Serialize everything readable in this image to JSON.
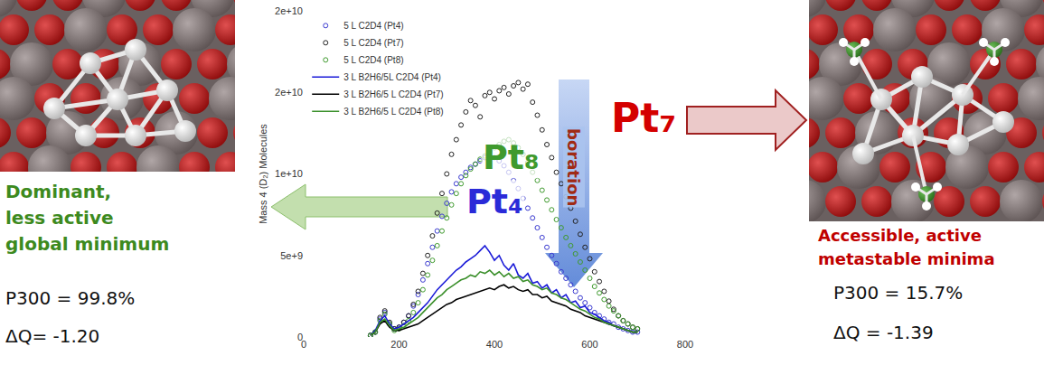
{
  "chart_data": {
    "type": "scatter",
    "x": [
      140,
      150,
      160,
      170,
      180,
      190,
      200,
      210,
      220,
      230,
      240,
      250,
      260,
      270,
      280,
      290,
      300,
      310,
      320,
      330,
      340,
      350,
      360,
      370,
      380,
      390,
      400,
      410,
      420,
      430,
      440,
      450,
      460,
      470,
      480,
      490,
      500,
      510,
      520,
      530,
      540,
      550,
      560,
      570,
      580,
      590,
      600,
      610,
      620,
      630,
      640,
      650,
      660,
      670,
      680,
      690,
      700
    ],
    "xlim": [
      0,
      800
    ],
    "xticks": [
      0,
      200,
      400,
      600,
      800
    ],
    "ylim": [
      0,
      20000000000.0
    ],
    "yticks": [
      0,
      {
        "value": 5000000000.0,
        "label": "5e+9"
      },
      {
        "value": 10000000000.0,
        "label": "1e+10"
      },
      {
        "value": 15000000000.0,
        "label": "2e+10"
      },
      {
        "value": 20000000000.0,
        "label": "2e+10"
      }
    ],
    "y_label": "Mass 4 (D₂) Molecules",
    "grid": false,
    "legend": "upper left",
    "series": [
      {
        "name": "5 L C2D4 (Pt4)",
        "type": "scatter",
        "marker": "open circle",
        "color": "#3a3ad0",
        "values": [
          100000000.0,
          300000000.0,
          1100000000.0,
          1500000000.0,
          800000000.0,
          500000000.0,
          600000000.0,
          900000000.0,
          1300000000.0,
          1900000000.0,
          2600000000.0,
          3500000000.0,
          4500000000.0,
          5500000000.0,
          6500000000.0,
          7400000000.0,
          8200000000.0,
          8900000000.0,
          9400000000.0,
          9800000000.0,
          10100000000.0,
          10400000000.0,
          10600000000.0,
          10800000000.0,
          11000000000.0,
          11100000000.0,
          11000000000.0,
          10800000000.0,
          10500000000.0,
          10100000000.0,
          9600000000.0,
          9100000000.0,
          8500000000.0,
          7900000000.0,
          7300000000.0,
          6700000000.0,
          6100000000.0,
          5500000000.0,
          5000000000.0,
          4500000000.0,
          4000000000.0,
          3600000000.0,
          3200000000.0,
          2800000000.0,
          2400000000.0,
          2100000000.0,
          1800000000.0,
          1500000000.0,
          1300000000.0,
          1100000000.0,
          900000000.0,
          800000000.0,
          600000000.0,
          500000000.0,
          400000000.0,
          300000000.0,
          300000000.0
        ]
      },
      {
        "name": "5 L C2D4 (Pt7)",
        "type": "scatter",
        "marker": "open circle",
        "color": "#222222",
        "values": [
          100000000.0,
          300000000.0,
          1200000000.0,
          1600000000.0,
          900000000.0,
          500000000.0,
          600000000.0,
          900000000.0,
          1300000000.0,
          2000000000.0,
          2800000000.0,
          3900000000.0,
          5000000000.0,
          6200000000.0,
          7600000000.0,
          8800000000.0,
          10000000000.0,
          11200000000.0,
          12100000000.0,
          13000000000.0,
          13800000000.0,
          14500000000.0,
          14200000000.0,
          13500000000.0,
          14800000000.0,
          15000000000.0,
          14600000000.0,
          15100000000.0,
          15300000000.0,
          14900000000.0,
          15400000000.0,
          15600000000.0,
          15200000000.0,
          15500000000.0,
          14400000000.0,
          13600000000.0,
          12700000000.0,
          11800000000.0,
          11000000000.0,
          10100000000.0,
          9400000000.0,
          8600000000.0,
          7900000000.0,
          7100000000.0,
          6300000000.0,
          5500000000.0,
          4800000000.0,
          4000000000.0,
          3400000000.0,
          2800000000.0,
          2200000000.0,
          1700000000.0,
          1300000000.0,
          1000000000.0,
          800000000.0,
          600000000.0,
          500000000.0
        ]
      },
      {
        "name": "5 L C2D4 (Pt8)",
        "type": "scatter",
        "marker": "open circle",
        "color": "#3f9a2e",
        "values": [
          100000000.0,
          300000000.0,
          1000000000.0,
          1400000000.0,
          800000000.0,
          400000000.0,
          500000000.0,
          700000000.0,
          1000000000.0,
          1500000000.0,
          2100000000.0,
          2900000000.0,
          3800000000.0,
          4700000000.0,
          5600000000.0,
          6500000000.0,
          7300000000.0,
          8100000000.0,
          8800000000.0,
          9400000000.0,
          9900000000.0,
          10300000000.0,
          10600000000.0,
          10900000000.0,
          11100000000.0,
          11400000000.0,
          11600000000.0,
          11800000000.0,
          12000000000.0,
          12100000000.0,
          11900000000.0,
          11600000000.0,
          11200000000.0,
          10700000000.0,
          10100000000.0,
          9600000000.0,
          9000000000.0,
          8400000000.0,
          7800000000.0,
          7200000000.0,
          6700000000.0,
          6100000000.0,
          5600000000.0,
          5100000000.0,
          4600000000.0,
          4100000000.0,
          3600000000.0,
          3100000000.0,
          2700000000.0,
          2300000000.0,
          1900000000.0,
          1600000000.0,
          1300000000.0,
          1000000000.0,
          800000000.0,
          600000000.0,
          500000000.0
        ]
      },
      {
        "name": "3 L B2H6/5L C2D4 (Pt4)",
        "type": "line",
        "line_style": "solid",
        "color": "#1a1ad8",
        "values": [
          100000000.0,
          400000000.0,
          1000000000.0,
          1300000000.0,
          800000000.0,
          500000000.0,
          600000000.0,
          800000000.0,
          1000000000.0,
          1200000000.0,
          1500000000.0,
          1800000000.0,
          2100000000.0,
          2500000000.0,
          2900000000.0,
          3200000000.0,
          3500000000.0,
          3800000000.0,
          4100000000.0,
          4300000000.0,
          4600000000.0,
          4800000000.0,
          5000000000.0,
          5300000000.0,
          5600000000.0,
          5200000000.0,
          4700000000.0,
          5000000000.0,
          4400000000.0,
          4100000000.0,
          4500000000.0,
          3800000000.0,
          3600000000.0,
          3900000000.0,
          3300000000.0,
          3400000000.0,
          3000000000.0,
          3200000000.0,
          2700000000.0,
          2900000000.0,
          2400000000.0,
          2600000000.0,
          2100000000.0,
          2200000000.0,
          1800000000.0,
          1900000000.0,
          1500000000.0,
          1400000000.0,
          1200000000.0,
          1000000000.0,
          900000000.0,
          700000000.0,
          600000000.0,
          500000000.0,
          400000000.0,
          300000000.0,
          300000000.0
        ]
      },
      {
        "name": "3 L B2H6/5 L C2D4 (Pt7)",
        "type": "line",
        "line_style": "solid",
        "color": "#000000",
        "values": [
          100000000.0,
          300000000.0,
          800000000.0,
          1000000000.0,
          600000000.0,
          400000000.0,
          400000000.0,
          500000000.0,
          600000000.0,
          700000000.0,
          800000000.0,
          1000000000.0,
          1200000000.0,
          1400000000.0,
          1600000000.0,
          1800000000.0,
          2000000000.0,
          2100000000.0,
          2300000000.0,
          2400000000.0,
          2500000000.0,
          2600000000.0,
          2700000000.0,
          2800000000.0,
          2900000000.0,
          3000000000.0,
          2900000000.0,
          3100000000.0,
          3200000000.0,
          3000000000.0,
          3100000000.0,
          2900000000.0,
          2800000000.0,
          2900000000.0,
          2600000000.0,
          2600000000.0,
          2400000000.0,
          2500000000.0,
          2200000000.0,
          2100000000.0,
          2000000000.0,
          1900000000.0,
          1700000000.0,
          1600000000.0,
          1500000000.0,
          1300000000.0,
          1200000000.0,
          1100000000.0,
          1000000000.0,
          900000000.0,
          800000000.0,
          700000000.0,
          600000000.0,
          500000000.0,
          400000000.0,
          300000000.0,
          300000000.0
        ]
      },
      {
        "name": "3 L B2H6/5 L C2D4 (Pt8)",
        "type": "line",
        "line_style": "solid",
        "color": "#3a8f2a",
        "values": [
          100000000.0,
          300000000.0,
          900000000.0,
          1100000000.0,
          700000000.0,
          400000000.0,
          500000000.0,
          600000000.0,
          800000000.0,
          1000000000.0,
          1200000000.0,
          1500000000.0,
          1800000000.0,
          2100000000.0,
          2400000000.0,
          2600000000.0,
          2900000000.0,
          3100000000.0,
          3300000000.0,
          3500000000.0,
          3600000000.0,
          3800000000.0,
          3700000000.0,
          4000000000.0,
          3900000000.0,
          4100000000.0,
          3800000000.0,
          4000000000.0,
          3700000000.0,
          3900000000.0,
          3600000000.0,
          3700000000.0,
          3400000000.0,
          3500000000.0,
          3200000000.0,
          3100000000.0,
          2900000000.0,
          3000000000.0,
          2700000000.0,
          2600000000.0,
          2400000000.0,
          2300000000.0,
          2100000000.0,
          1900000000.0,
          1700000000.0,
          1600000000.0,
          1400000000.0,
          1200000000.0,
          1100000000.0,
          900000000.0,
          800000000.0,
          700000000.0,
          600000000.0,
          500000000.0,
          400000000.0,
          300000000.0,
          300000000.0
        ]
      }
    ],
    "annotations": [
      {
        "text": "Pt₇",
        "color": "#d40000"
      },
      {
        "text": "Pt₈",
        "color": "#3f9a2e"
      },
      {
        "text": "Pt₄",
        "color": "#2a2ad8"
      },
      {
        "text": "boration",
        "color": "#a02a14"
      }
    ]
  },
  "left_panel": {
    "label_lines": [
      "Dominant,",
      "less active",
      "global minimum"
    ],
    "label_color": "#3d8a1e",
    "lines": [
      "P300 = 99.8%",
      "ΔQ= -1.20"
    ]
  },
  "right_panel": {
    "label_lines": [
      "Accessible, active",
      "metastable minima"
    ],
    "label_color": "#c00000",
    "lines": [
      "P300 = 15.7%",
      "ΔQ = -1.39"
    ]
  }
}
